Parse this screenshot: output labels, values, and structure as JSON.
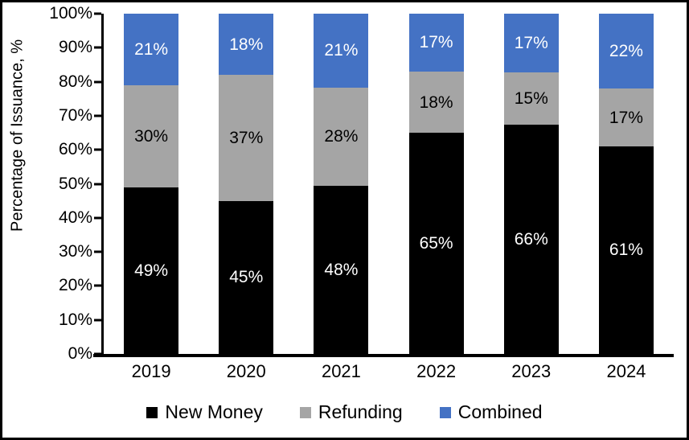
{
  "chart_data": {
    "type": "bar",
    "stacked": true,
    "title": "",
    "xlabel": "",
    "ylabel": "Percentage of Issuance, %",
    "ylim": [
      0,
      100
    ],
    "yticks": [
      "0%",
      "10%",
      "20%",
      "30%",
      "40%",
      "50%",
      "60%",
      "70%",
      "80%",
      "90%",
      "100%"
    ],
    "grid": false,
    "legend_position": "bottom",
    "categories": [
      "2019",
      "2020",
      "2021",
      "2022",
      "2023",
      "2024"
    ],
    "series": [
      {
        "name": "New Money",
        "color": "#000000",
        "label_color": "#ffffff",
        "values": [
          49,
          45,
          48,
          65,
          66,
          61
        ],
        "labels": [
          "49%",
          "45%",
          "48%",
          "65%",
          "66%",
          "61%"
        ]
      },
      {
        "name": "Refunding",
        "color": "#a5a5a5",
        "label_color": "#000000",
        "values": [
          30,
          37,
          28,
          18,
          15,
          17
        ],
        "labels": [
          "30%",
          "37%",
          "28%",
          "18%",
          "15%",
          "17%"
        ]
      },
      {
        "name": "Combined",
        "color": "#4472c4",
        "label_color": "#ffffff",
        "values": [
          21,
          18,
          21,
          17,
          17,
          22
        ],
        "labels": [
          "21%",
          "18%",
          "21%",
          "17%",
          "17%",
          "22%"
        ]
      }
    ]
  }
}
